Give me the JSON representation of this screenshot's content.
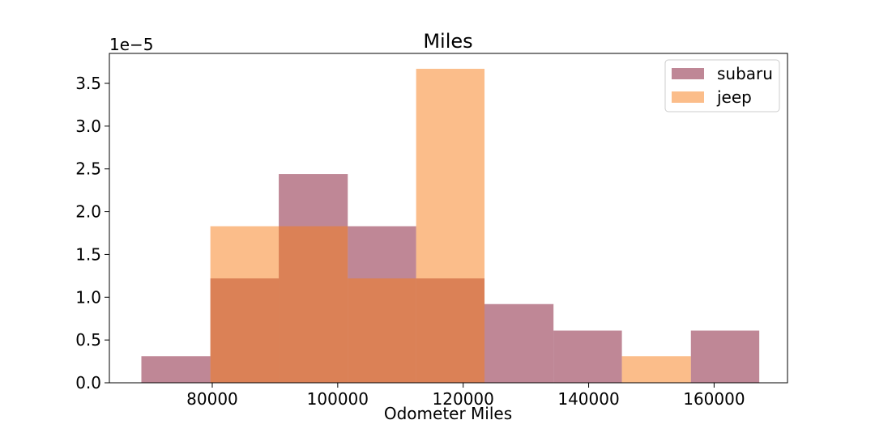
{
  "chart_data": {
    "type": "bar",
    "title": "Miles",
    "xlabel": "Odometer Miles",
    "ylabel": "",
    "y_offset_label": "1e−5",
    "xlim": [
      63600,
      171700
    ],
    "ylim": [
      0,
      3.85
    ],
    "x_ticks": [
      80000,
      100000,
      120000,
      140000,
      160000
    ],
    "x_tick_labels": [
      "80000",
      "100000",
      "120000",
      "140000",
      "160000"
    ],
    "y_ticks": [
      0,
      0.5,
      1.0,
      1.5,
      2.0,
      2.5,
      3.0,
      3.5
    ],
    "y_tick_labels": [
      "0.0",
      "0.5",
      "1.0",
      "1.5",
      "2.0",
      "2.5",
      "3.0",
      "3.5"
    ],
    "grid": false,
    "legend_position": "top-right",
    "bin_edges": [
      68700,
      79700,
      90600,
      101600,
      112500,
      123400,
      134400,
      145300,
      156300,
      167200
    ],
    "series": [
      {
        "name": "subaru",
        "color": "#7f0f2e",
        "opacity": 0.5,
        "values": [
          0.31,
          1.22,
          2.44,
          1.83,
          1.22,
          0.92,
          0.61,
          0.0,
          0.61
        ]
      },
      {
        "name": "jeep",
        "color": "#f77b16",
        "opacity": 0.5,
        "values": [
          0.0,
          1.83,
          1.83,
          1.22,
          3.67,
          0.0,
          0.0,
          0.31,
          0.0
        ]
      }
    ]
  }
}
